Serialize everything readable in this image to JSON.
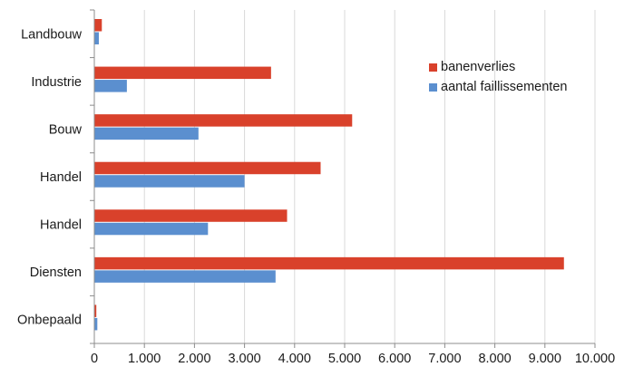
{
  "chart_data": {
    "type": "bar",
    "orientation": "horizontal",
    "categories": [
      "Landbouw",
      "Industrie",
      "Bouw",
      "Handel",
      "Handel",
      "Diensten",
      "Onbepaald"
    ],
    "series": [
      {
        "name": "banenverlies",
        "color": "#d9412b",
        "values": [
          150,
          3530,
          5150,
          4520,
          3850,
          9380,
          40
        ]
      },
      {
        "name": "aantal faillissementen",
        "color": "#5b8fcf",
        "values": [
          90,
          650,
          2080,
          3000,
          2270,
          3620,
          60
        ]
      }
    ],
    "xlim": [
      0,
      10000
    ],
    "xticks": [
      0,
      1000,
      2000,
      3000,
      4000,
      5000,
      6000,
      7000,
      8000,
      9000,
      10000
    ],
    "xtick_labels": [
      "0",
      "1.000",
      "2.000",
      "3.000",
      "4.000",
      "5.000",
      "6.000",
      "7.000",
      "8.000",
      "9.000",
      "10.000"
    ],
    "grid": true,
    "legend_position": "top-right"
  }
}
